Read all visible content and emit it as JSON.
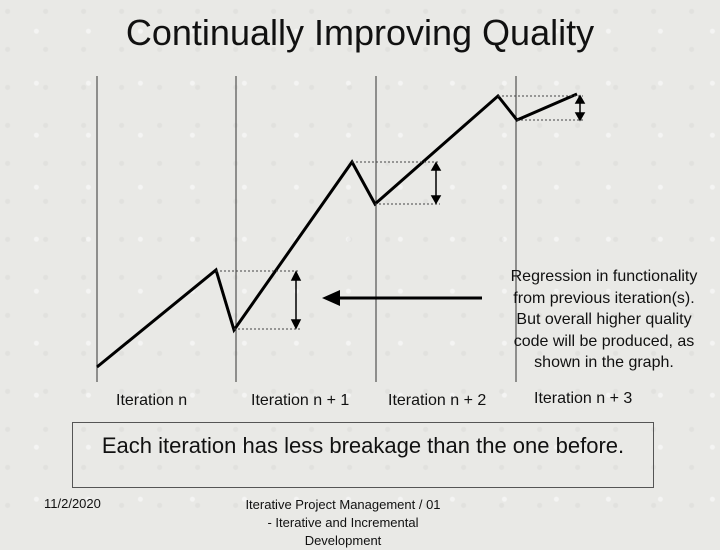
{
  "slide": {
    "title": "Continually Improving Quality"
  },
  "iterations": [
    {
      "label": "Iteration n"
    },
    {
      "label": "Iteration n + 1"
    },
    {
      "label": "Iteration n + 2"
    },
    {
      "label": "Iteration n + 3"
    }
  ],
  "callout": {
    "lines": [
      "Regression in functionality",
      "from previous iteration(s).",
      "But overall higher quality",
      "code will be produced, as",
      "shown in the graph."
    ]
  },
  "summary": {
    "text": "Each iteration has less breakage than the one before."
  },
  "footer": {
    "date": "11/2/2020",
    "center": "Iterative Project Management / 01 - Iterative and Incremental Development"
  },
  "colors": {
    "line": "#000000",
    "guide": "#333333",
    "background": "#e9e9e6"
  }
}
